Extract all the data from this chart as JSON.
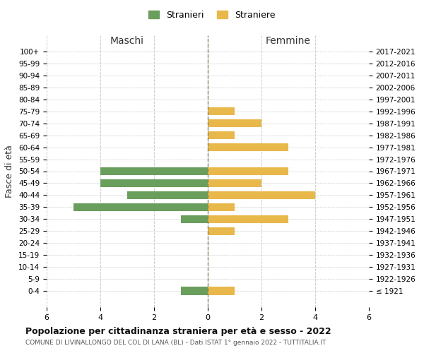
{
  "age_groups": [
    "100+",
    "95-99",
    "90-94",
    "85-89",
    "80-84",
    "75-79",
    "70-74",
    "65-69",
    "60-64",
    "55-59",
    "50-54",
    "45-49",
    "40-44",
    "35-39",
    "30-34",
    "25-29",
    "20-24",
    "15-19",
    "10-14",
    "5-9",
    "0-4"
  ],
  "birth_years": [
    "≤ 1921",
    "1922-1926",
    "1927-1931",
    "1932-1936",
    "1937-1941",
    "1942-1946",
    "1947-1951",
    "1952-1956",
    "1957-1961",
    "1962-1966",
    "1967-1971",
    "1972-1976",
    "1977-1981",
    "1982-1986",
    "1987-1991",
    "1992-1996",
    "1997-2001",
    "2002-2006",
    "2007-2011",
    "2012-2016",
    "2017-2021"
  ],
  "maschi": [
    0,
    0,
    0,
    0,
    0,
    0,
    0,
    0,
    0,
    0,
    4,
    4,
    3,
    5,
    1,
    0,
    0,
    0,
    0,
    0,
    1
  ],
  "femmine": [
    0,
    0,
    0,
    0,
    0,
    1,
    2,
    1,
    3,
    0,
    3,
    2,
    4,
    1,
    3,
    1,
    0,
    0,
    0,
    0,
    1
  ],
  "maschi_color": "#6a9e5c",
  "femmine_color": "#e8b84b",
  "title": "Popolazione per cittadinanza straniera per età e sesso - 2022",
  "subtitle": "COMUNE DI LIVINALLONGO DEL COL DI LANA (BL) - Dati ISTAT 1° gennaio 2022 - TUTTITALIA.IT",
  "xlabel_left": "Maschi",
  "xlabel_right": "Femmine",
  "ylabel_left": "Fasce di età",
  "legend_maschi": "Stranieri",
  "legend_femmine": "Straniere",
  "xlim": 6,
  "background_color": "#ffffff",
  "grid_color": "#cccccc"
}
